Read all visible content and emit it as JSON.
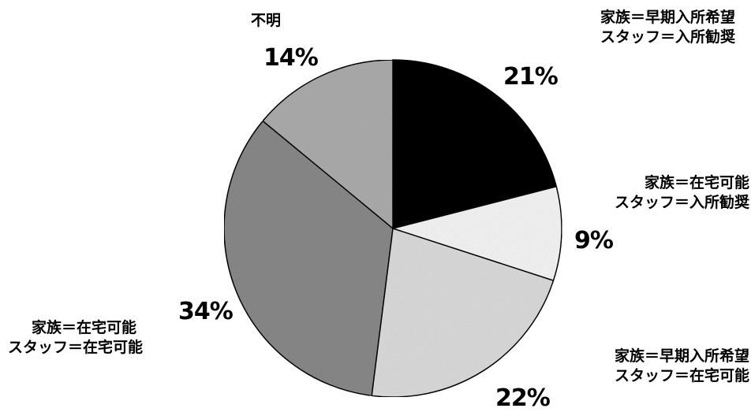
{
  "chart_data": {
    "type": "pie",
    "start": "12 o'clock",
    "direction": "clockwise",
    "slices": [
      {
        "label_line1": "家族＝早期入所希望",
        "label_line2": "スタッフ＝入所勧奨",
        "value": 21,
        "pct_text": "21%",
        "fill": "#000000"
      },
      {
        "label_line1": "家族＝在宅可能",
        "label_line2": "スタッフ＝入所勧奨",
        "value": 9,
        "pct_text": "9%",
        "fill": "#f6f6f6"
      },
      {
        "label_line1": "家族＝早期入所希望",
        "label_line2": "スタッフ＝在宅可能",
        "value": 22,
        "pct_text": "22%",
        "fill": "#dcdcdc"
      },
      {
        "label_line1": "家族＝在宅可能",
        "label_line2": "スタッフ＝在宅可能",
        "value": 34,
        "pct_text": "34%",
        "fill": "#8a8a8a"
      },
      {
        "label_line1": "不明",
        "label_line2": "",
        "value": 14,
        "pct_text": "14%",
        "fill": "#adadad"
      }
    ]
  }
}
